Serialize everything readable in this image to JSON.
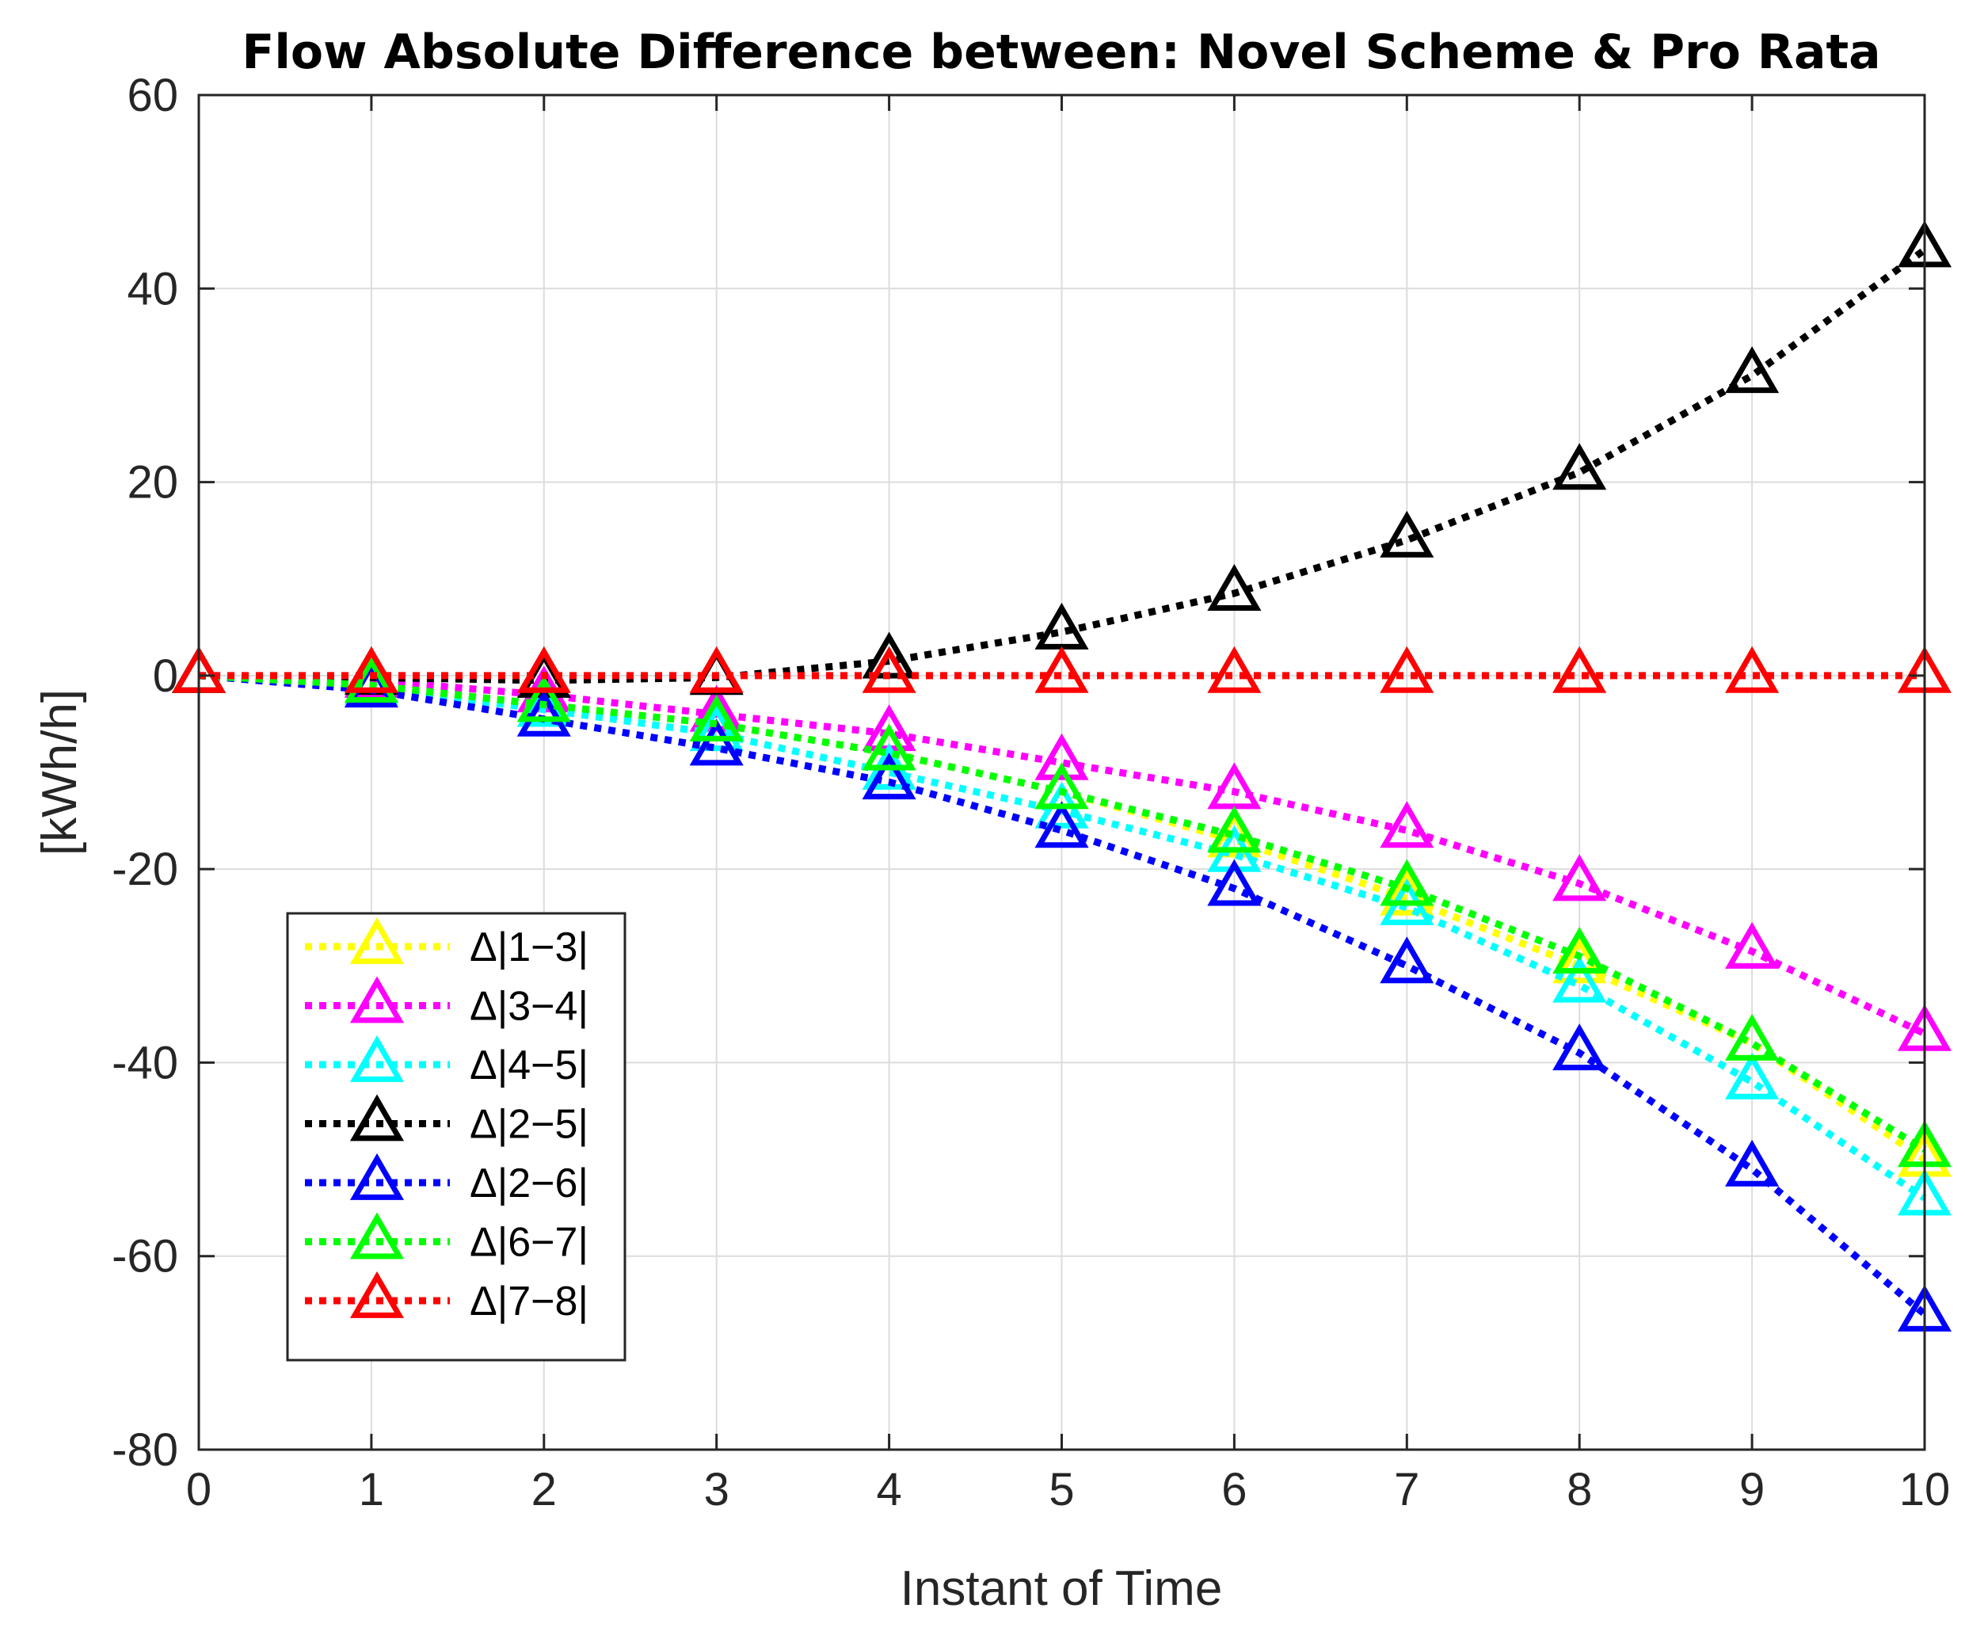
{
  "chart_data": {
    "type": "line",
    "title": "Flow Absolute Difference between: Novel Scheme & Pro Rata",
    "xlabel": "Instant of Time",
    "ylabel": "[kWh/h]",
    "xlim": [
      0,
      10
    ],
    "ylim": [
      -80,
      60
    ],
    "xticks": [
      0,
      1,
      2,
      3,
      4,
      5,
      6,
      7,
      8,
      9,
      10
    ],
    "yticks": [
      60,
      40,
      20,
      0,
      -20,
      -40,
      -60,
      -80
    ],
    "grid": true,
    "legend_position": "lower-left",
    "x": [
      0,
      1,
      2,
      3,
      4,
      5,
      6,
      7,
      8,
      9,
      10
    ],
    "series": [
      {
        "name": "Δ|1−3|",
        "color": "#FFFF00",
        "values": [
          0,
          -1,
          -3,
          -5,
          -8,
          -12,
          -17,
          -23,
          -30,
          -38,
          -50
        ]
      },
      {
        "name": "Δ|3−4|",
        "color": "#FF00FF",
        "values": [
          0,
          -0.5,
          -2,
          -4,
          -6,
          -9,
          -12,
          -16,
          -21.5,
          -28.5,
          -37
        ]
      },
      {
        "name": "Δ|4−5|",
        "color": "#00FFFF",
        "values": [
          0,
          -1.2,
          -3.5,
          -6,
          -10,
          -14,
          -18.5,
          -24,
          -32,
          -42,
          -54
        ]
      },
      {
        "name": "Δ|2−5|",
        "color": "#000000",
        "values": [
          0,
          -0.2,
          -0.5,
          -0.2,
          1.5,
          4.5,
          8.5,
          14,
          21,
          31,
          44
        ]
      },
      {
        "name": "Δ|2−6|",
        "color": "#0000FF",
        "values": [
          0,
          -1.5,
          -4.5,
          -7.5,
          -11,
          -16,
          -22,
          -30,
          -39,
          -51,
          -66
        ]
      },
      {
        "name": "Δ|6−7|",
        "color": "#00FF00",
        "values": [
          0,
          -1,
          -3,
          -5,
          -8,
          -12,
          -16.5,
          -22,
          -29,
          -38,
          -49
        ]
      },
      {
        "name": "Δ|7−8|",
        "color": "#FF0000",
        "values": [
          0,
          0,
          0,
          0,
          0,
          0,
          0,
          0,
          0,
          0,
          0
        ]
      }
    ]
  }
}
